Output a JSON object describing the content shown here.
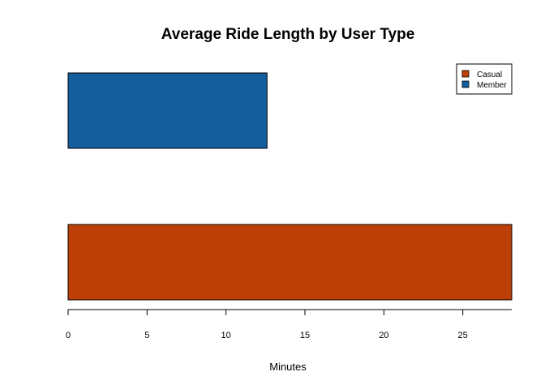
{
  "chart_data": {
    "type": "bar",
    "orientation": "horizontal",
    "title": "Average Ride Length by User Type",
    "xlabel": "Minutes",
    "ylabel": "",
    "categories": [
      "Casual",
      "Member"
    ],
    "values": [
      28.1,
      12.6
    ],
    "colors": {
      "Casual": "#bd3e06",
      "Member": "#155e9e"
    },
    "xlim": [
      0,
      28.1
    ],
    "x_ticks": [
      0,
      5,
      10,
      15,
      20,
      25
    ],
    "grid": false,
    "legend": {
      "placement": "top-right",
      "entries": [
        "Casual",
        "Member"
      ]
    }
  }
}
